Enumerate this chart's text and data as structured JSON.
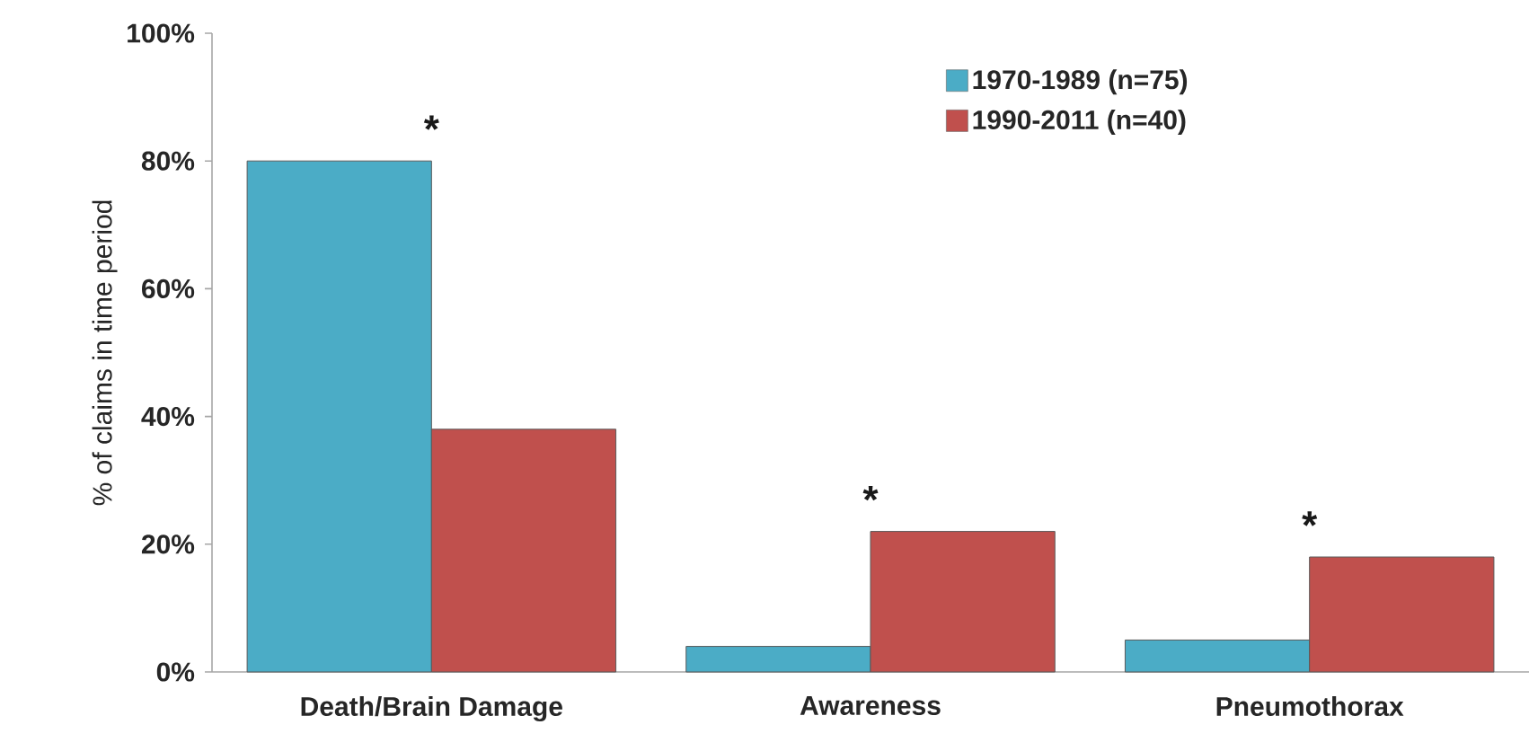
{
  "chart_data": {
    "type": "bar",
    "ylabel": "% of claims in time period",
    "categories": [
      "Death/Brain Damage",
      "Awareness",
      "Pneumothorax"
    ],
    "series": [
      {
        "name": "1970-1989 (n=75)",
        "color": "#4bacc6",
        "values": [
          80,
          4,
          5
        ]
      },
      {
        "name": "1990-2011 (n=40)",
        "color": "#c0504d",
        "values": [
          38,
          22,
          18
        ]
      }
    ],
    "ylim": [
      0,
      100
    ],
    "yticks": [
      {
        "value": 0,
        "label": "0%"
      },
      {
        "value": 20,
        "label": "20%"
      },
      {
        "value": 40,
        "label": "40%"
      },
      {
        "value": 60,
        "label": "60%"
      },
      {
        "value": 80,
        "label": "80%"
      },
      {
        "value": 100,
        "label": "100%"
      }
    ],
    "annotations": [
      "*",
      "*",
      "*"
    ],
    "legend": "top right"
  }
}
